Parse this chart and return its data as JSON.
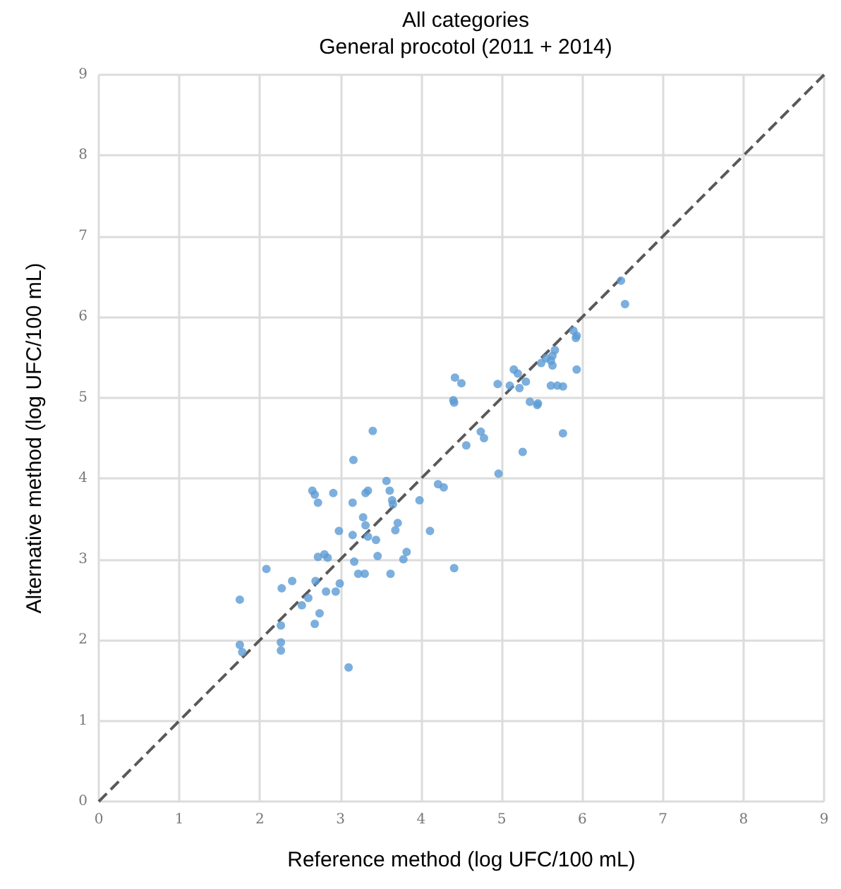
{
  "chart_data": {
    "type": "scatter",
    "title": "All categories",
    "subtitle": "General procotol (2011 + 2014)",
    "xlabel": "Reference method (log UFC/100 mL)",
    "ylabel": "Alternative method (log UFC/100 mL)",
    "xlim": [
      0,
      9
    ],
    "ylim": [
      0,
      9
    ],
    "xticks": [
      0,
      1,
      2,
      3,
      4,
      5,
      6,
      7,
      8,
      9
    ],
    "yticks": [
      0,
      1,
      2,
      3,
      4,
      5,
      6,
      7,
      8,
      9
    ],
    "grid": true,
    "marker": "circle",
    "series": [
      {
        "color": "#5b9bd5",
        "x": [
          2.65,
          2.68,
          2.72,
          2.72,
          2.8,
          2.84,
          2.08,
          2.4,
          2.27,
          2.69,
          2.82,
          1.75,
          2.52,
          2.6,
          2.74,
          2.68,
          2.26,
          2.26,
          2.26,
          1.75,
          1.78,
          3.1,
          2.91,
          2.94,
          2.99,
          2.98,
          4.41,
          3.4,
          4.74,
          4.78,
          4.56,
          5.26,
          5.44,
          3.16,
          4.96,
          3.57,
          3.61,
          3.34,
          3.31,
          3.15,
          3.64,
          3.65,
          4.21,
          4.28,
          3.98,
          3.28,
          3.31,
          3.71,
          3.68,
          3.15,
          3.34,
          3.44,
          4.11,
          3.46,
          3.82,
          3.78,
          3.17,
          3.22,
          3.3,
          3.62,
          4.41,
          6.53,
          6.48,
          5.89,
          5.93,
          5.92,
          5.66,
          5.63,
          5.61,
          5.63,
          5.55,
          5.49,
          5.93,
          5.61,
          5.69,
          5.76,
          5.45,
          5.76,
          4.42,
          4.5,
          4.4,
          4.95,
          5.1,
          5.15,
          5.2,
          5.22,
          5.3,
          5.35
        ],
        "values": [
          3.85,
          3.8,
          3.7,
          3.03,
          3.06,
          3.02,
          2.88,
          2.73,
          2.64,
          2.73,
          2.6,
          2.5,
          2.43,
          2.52,
          2.33,
          2.2,
          2.18,
          1.97,
          1.87,
          1.94,
          1.85,
          1.66,
          3.82,
          2.6,
          2.7,
          3.35,
          4.94,
          4.59,
          4.58,
          4.5,
          4.41,
          4.33,
          4.91,
          4.23,
          4.06,
          3.97,
          3.85,
          3.85,
          3.82,
          3.7,
          3.73,
          3.68,
          3.93,
          3.89,
          3.73,
          3.52,
          3.42,
          3.45,
          3.36,
          3.3,
          3.28,
          3.24,
          3.35,
          3.04,
          3.09,
          3.0,
          2.97,
          2.82,
          2.82,
          2.82,
          2.89,
          6.16,
          6.45,
          5.83,
          5.77,
          5.74,
          5.59,
          5.52,
          5.46,
          5.4,
          5.49,
          5.43,
          5.35,
          5.15,
          5.15,
          5.14,
          4.93,
          4.56,
          5.25,
          5.18,
          4.97,
          5.17,
          5.15,
          5.35,
          5.3,
          5.12,
          5.2,
          4.95
        ]
      },
      {
        "type": "line",
        "color": "#595959",
        "line_style": "dashed",
        "marker": "none",
        "x": [
          0,
          9
        ],
        "values": [
          0,
          9
        ]
      }
    ]
  }
}
